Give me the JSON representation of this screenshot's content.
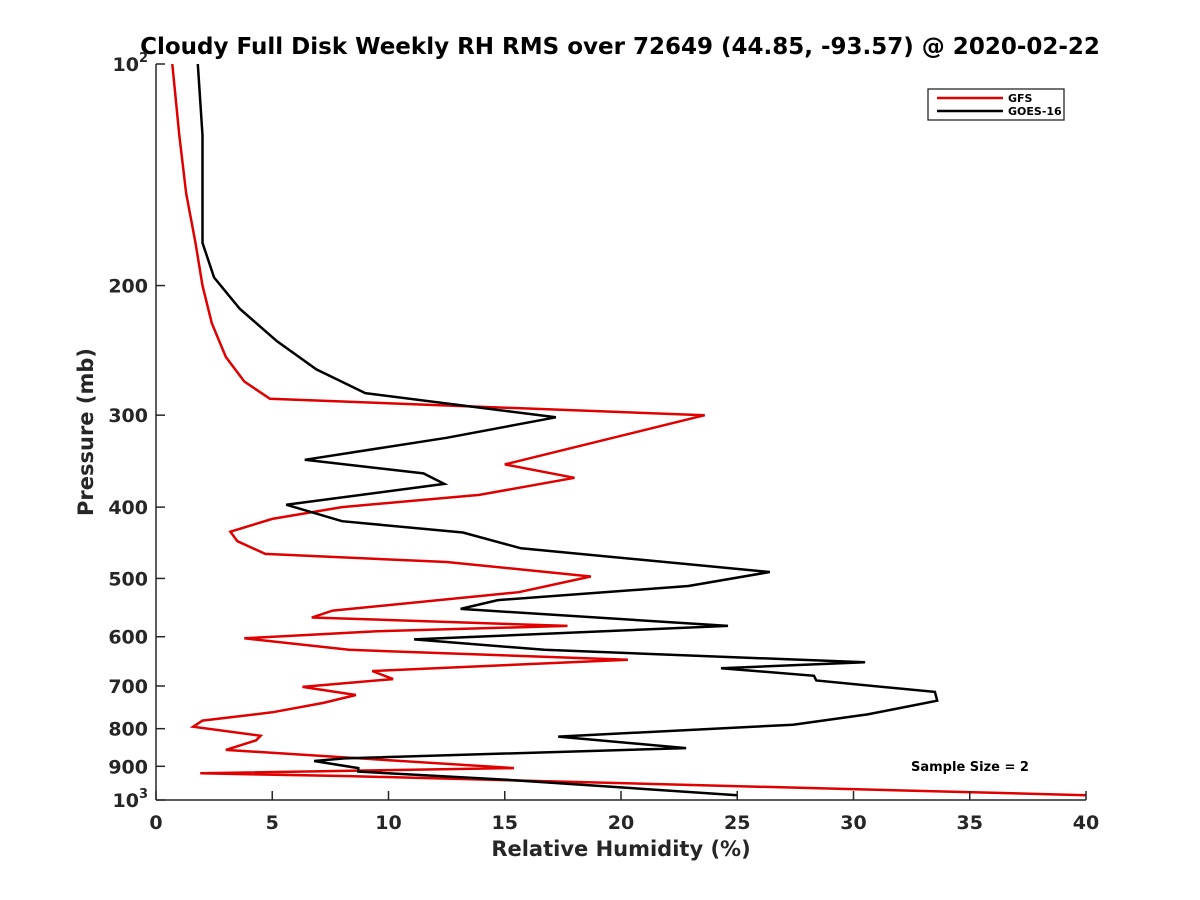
{
  "chart_data": {
    "type": "line",
    "title": "Cloudy Full Disk Weekly RH RMS over 72649 (44.85, -93.57) @ 2020-02-22",
    "xlabel": "Relative Humidity (%)",
    "ylabel": "Pressure (mb)",
    "xlim": [
      0,
      40
    ],
    "ylim": [
      100,
      1000
    ],
    "y_scale": "log",
    "y_reversed": true,
    "grid": false,
    "legend_position": "top-right",
    "x_ticks": [
      "0",
      "5",
      "10",
      "15",
      "20",
      "25",
      "30",
      "35",
      "40"
    ],
    "y_ticks": [
      {
        "value": 100,
        "base": "10",
        "exp": "2"
      },
      {
        "value": 200,
        "label": "200"
      },
      {
        "value": 300,
        "label": "300"
      },
      {
        "value": 400,
        "label": "400"
      },
      {
        "value": 500,
        "label": "500"
      },
      {
        "value": 600,
        "label": "600"
      },
      {
        "value": 700,
        "label": "700"
      },
      {
        "value": 800,
        "label": "800"
      },
      {
        "value": 900,
        "label": "900"
      },
      {
        "value": 1000,
        "base": "10",
        "exp": "3"
      }
    ],
    "annotation": "Sample Size = 2",
    "series": [
      {
        "name": "GFS",
        "color": "#e00000",
        "points": [
          [
            0.7,
            100
          ],
          [
            1.0,
            125
          ],
          [
            1.3,
            150
          ],
          [
            1.7,
            175
          ],
          [
            2.0,
            200
          ],
          [
            2.4,
            225
          ],
          [
            3.0,
            250
          ],
          [
            3.8,
            270
          ],
          [
            4.9,
            285
          ],
          [
            23.6,
            300
          ],
          [
            15.0,
            350
          ],
          [
            18.0,
            365
          ],
          [
            13.9,
            385
          ],
          [
            8.0,
            400
          ],
          [
            5.0,
            415
          ],
          [
            3.2,
            432
          ],
          [
            3.5,
            445
          ],
          [
            4.7,
            463
          ],
          [
            12.5,
            475
          ],
          [
            18.7,
            497
          ],
          [
            15.6,
            522
          ],
          [
            7.6,
            553
          ],
          [
            6.7,
            565
          ],
          [
            17.7,
            580
          ],
          [
            9.5,
            590
          ],
          [
            3.8,
            603
          ],
          [
            8.3,
            625
          ],
          [
            20.3,
            645
          ],
          [
            9.3,
            668
          ],
          [
            10.2,
            685
          ],
          [
            6.3,
            702
          ],
          [
            8.6,
            720
          ],
          [
            7.2,
            738
          ],
          [
            5.0,
            760
          ],
          [
            2.0,
            780
          ],
          [
            1.6,
            795
          ],
          [
            4.5,
            818
          ],
          [
            4.3,
            830
          ],
          [
            3.0,
            855
          ],
          [
            15.4,
            905
          ],
          [
            1.9,
            920
          ],
          [
            8.3,
            928
          ],
          [
            40.0,
            985
          ]
        ]
      },
      {
        "name": "GOES-16",
        "color": "#000000",
        "points": [
          [
            1.8,
            100
          ],
          [
            2.0,
            125
          ],
          [
            2.0,
            150
          ],
          [
            2.0,
            175
          ],
          [
            2.5,
            195
          ],
          [
            3.6,
            215
          ],
          [
            5.2,
            238
          ],
          [
            6.9,
            260
          ],
          [
            9.0,
            280
          ],
          [
            17.2,
            302
          ],
          [
            12.5,
            322
          ],
          [
            6.4,
            345
          ],
          [
            11.5,
            360
          ],
          [
            12.4,
            372
          ],
          [
            5.6,
            397
          ],
          [
            8.0,
            418
          ],
          [
            13.2,
            433
          ],
          [
            15.7,
            455
          ],
          [
            26.4,
            490
          ],
          [
            22.9,
            512
          ],
          [
            14.7,
            535
          ],
          [
            13.1,
            550
          ],
          [
            24.6,
            580
          ],
          [
            11.1,
            605
          ],
          [
            16.7,
            625
          ],
          [
            30.5,
            650
          ],
          [
            24.3,
            662
          ],
          [
            28.3,
            678
          ],
          [
            28.4,
            688
          ],
          [
            33.5,
            713
          ],
          [
            33.6,
            733
          ],
          [
            30.6,
            765
          ],
          [
            27.4,
            790
          ],
          [
            17.3,
            820
          ],
          [
            22.8,
            850
          ],
          [
            8.1,
            878
          ],
          [
            6.8,
            885
          ],
          [
            8.7,
            905
          ],
          [
            8.7,
            915
          ],
          [
            15.4,
            940
          ],
          [
            25.0,
            985
          ]
        ]
      }
    ]
  }
}
